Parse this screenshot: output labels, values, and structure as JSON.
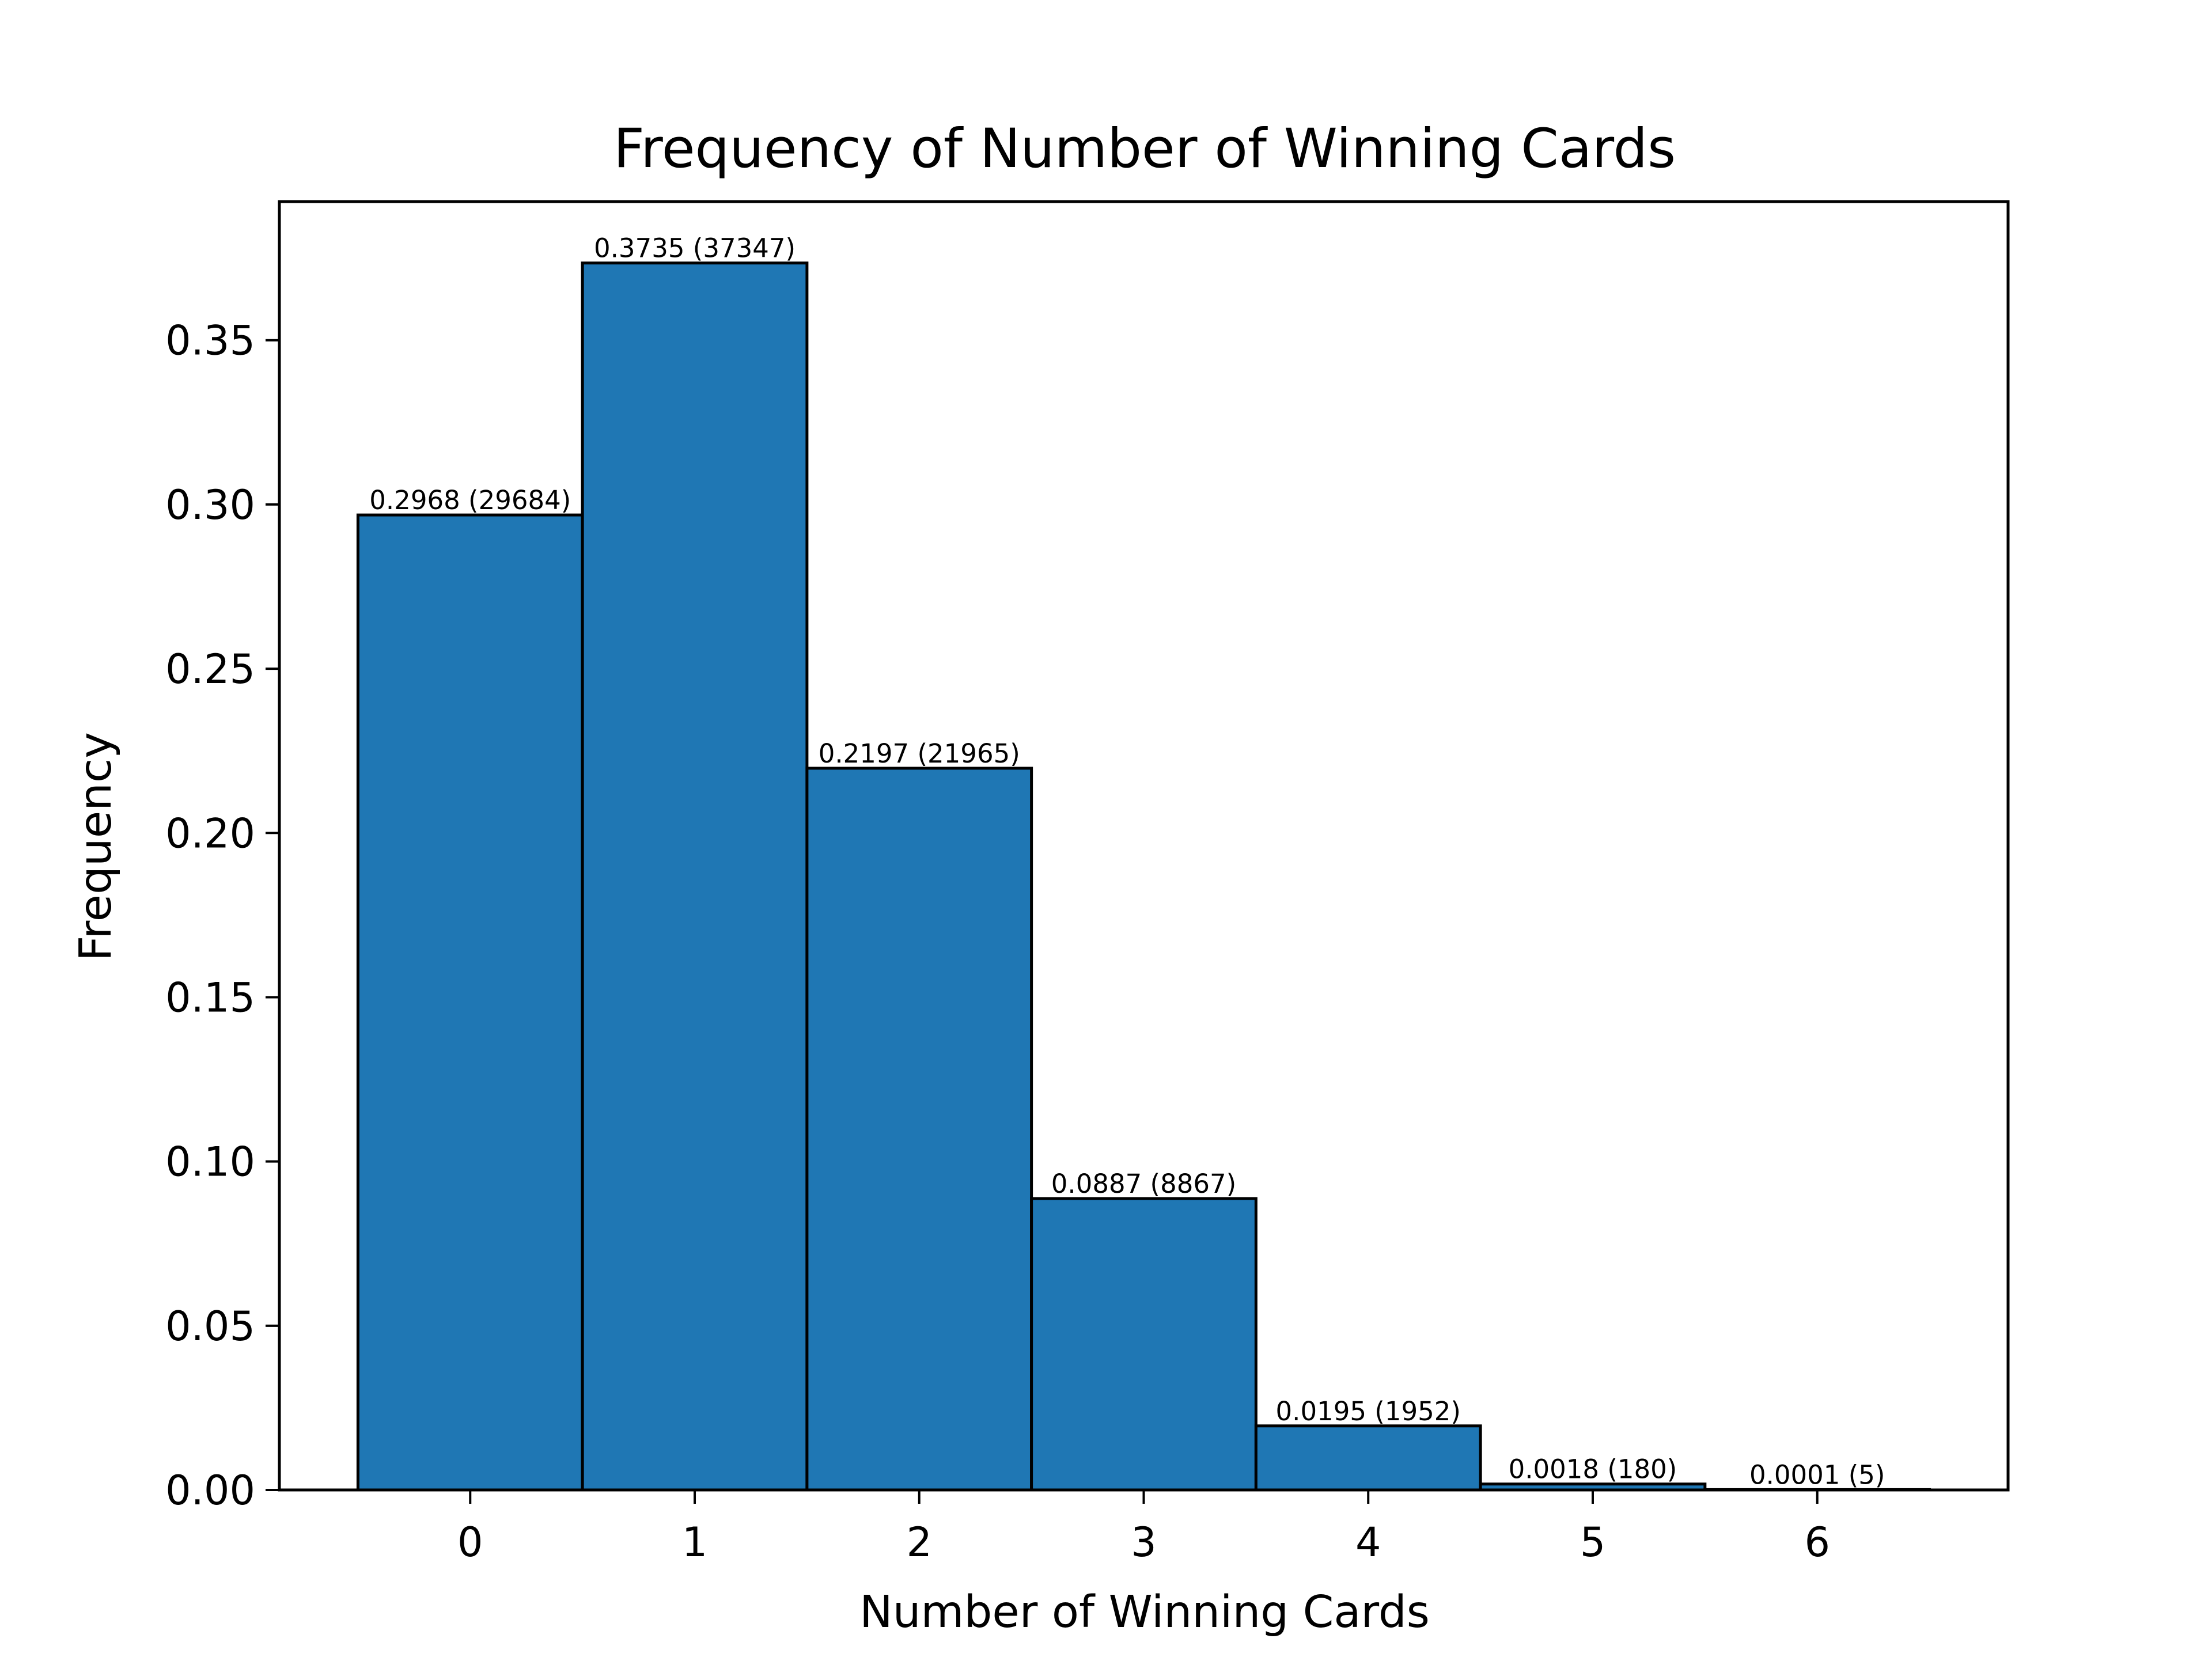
{
  "chart_data": {
    "type": "bar",
    "title": "Frequency of Number of Winning Cards",
    "xlabel": "Number of Winning Cards",
    "ylabel": "Frequency",
    "categories": [
      "0",
      "1",
      "2",
      "3",
      "4",
      "5",
      "6"
    ],
    "values": [
      0.2968,
      0.3735,
      0.2197,
      0.0887,
      0.0195,
      0.0018,
      0.0001
    ],
    "counts": [
      29684,
      37347,
      21965,
      8867,
      1952,
      180,
      5
    ],
    "data_labels": [
      "0.2968 (29684)",
      "0.3735 (37347)",
      "0.2197 (21965)",
      "0.0887 (8867)",
      "0.0195 (1952)",
      "0.0018 (180)",
      "0.0001 (5)"
    ],
    "xlim": [
      -0.85,
      6.85
    ],
    "ylim": [
      0,
      0.3922
    ],
    "yticks": [
      "0.00",
      "0.05",
      "0.10",
      "0.15",
      "0.20",
      "0.25",
      "0.30",
      "0.35"
    ],
    "ytick_values": [
      0,
      0.05,
      0.1,
      0.15,
      0.2,
      0.25,
      0.3,
      0.35
    ],
    "xtick_values": [
      0,
      1,
      2,
      3,
      4,
      5,
      6
    ],
    "bar_width": 1.0,
    "bar_color": "#1f77b4",
    "edge_color": "#000000",
    "grid": false,
    "legend": "none"
  }
}
